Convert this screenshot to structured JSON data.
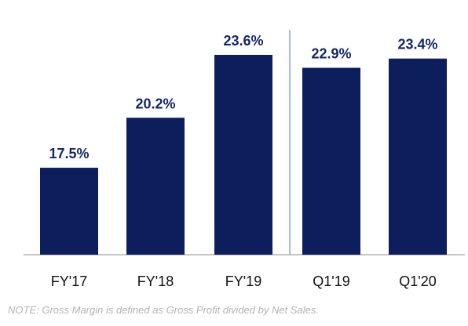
{
  "chart_data": {
    "type": "bar",
    "categories": [
      "FY'17",
      "FY'18",
      "FY'19",
      "Q1'19",
      "Q1'20"
    ],
    "values": [
      17.5,
      20.2,
      23.6,
      22.9,
      23.4
    ],
    "value_labels": [
      "17.5%",
      "20.2%",
      "23.6%",
      "22.9%",
      "23.4%"
    ],
    "ylim": [
      12.8,
      23.6
    ],
    "grid": false,
    "divider_after_category": "FY'19",
    "bar_color": "#0c1f5c",
    "label_color": "#14276a"
  },
  "note": "NOTE: Gross Margin is defined as Gross Profit divided by Net Sales."
}
